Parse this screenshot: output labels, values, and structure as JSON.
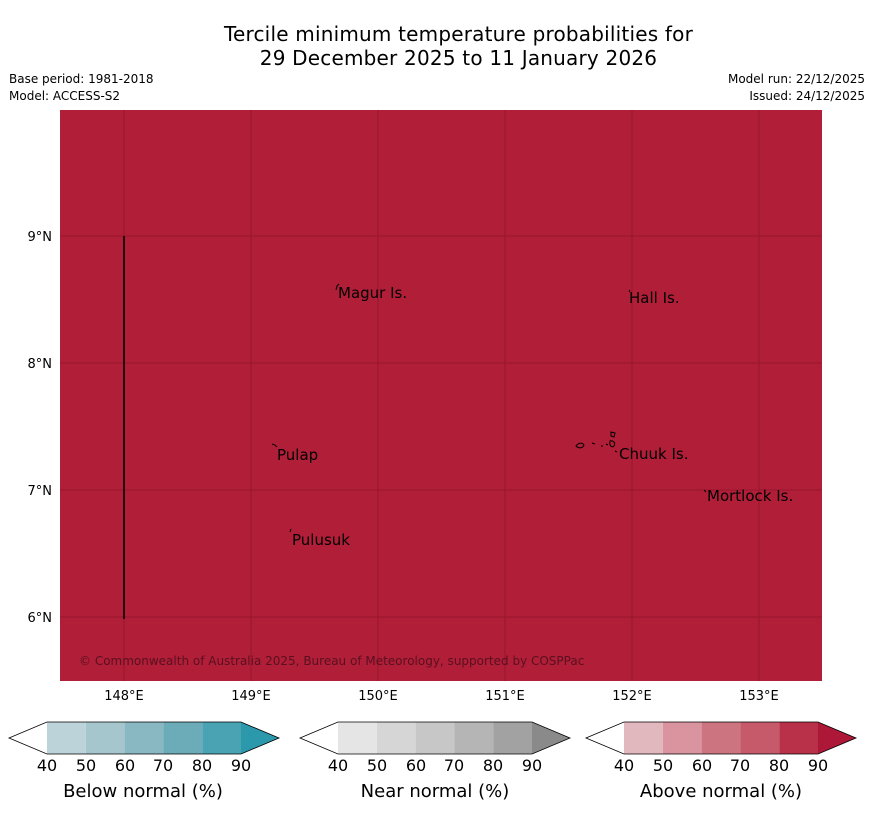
{
  "title": {
    "line1": "Tercile minimum temperature probabilities for",
    "line2": "29 December 2025 to 11 January 2026"
  },
  "meta": {
    "base_period": "Base period: 1981-2018",
    "model": "Model: ACCESS-S2",
    "model_run": "Model run: 22/12/2025",
    "issued": "Issued: 24/12/2025"
  },
  "map": {
    "fill_color": "#b01e38",
    "lat_labels": [
      "9°N",
      "8°N",
      "7°N",
      "6°N"
    ],
    "lon_labels": [
      "148°E",
      "149°E",
      "150°E",
      "151°E",
      "152°E",
      "153°E"
    ],
    "places": [
      {
        "name": "Magur Is."
      },
      {
        "name": "Hall Is."
      },
      {
        "name": "Pulap"
      },
      {
        "name": "Chuuk Is."
      },
      {
        "name": "Mortlock Is."
      },
      {
        "name": "Pulusuk"
      }
    ],
    "copyright": "© Commonwealth of Australia 2025, Bureau of Meteorology, supported by COSPPac"
  },
  "colorbars": [
    {
      "label": "Below normal (%)",
      "ticks": [
        "40",
        "50",
        "60",
        "70",
        "80",
        "90"
      ],
      "colors": [
        "#ffffff",
        "#bdd3da",
        "#a5c6cd",
        "#8ab8c2",
        "#6cabb8",
        "#4aa3b3",
        "#2c98ac"
      ]
    },
    {
      "label": "Near normal (%)",
      "ticks": [
        "40",
        "50",
        "60",
        "70",
        "80",
        "90"
      ],
      "colors": [
        "#ffffff",
        "#e5e5e5",
        "#d6d6d6",
        "#c7c7c7",
        "#b5b5b5",
        "#a2a2a2",
        "#8a8a8a"
      ]
    },
    {
      "label": "Above normal (%)",
      "ticks": [
        "40",
        "50",
        "60",
        "70",
        "80",
        "90"
      ],
      "colors": [
        "#ffffff",
        "#e2b8bf",
        "#d9949f",
        "#cc7480",
        "#c65a6a",
        "#b93148",
        "#ae1838"
      ]
    }
  ]
}
